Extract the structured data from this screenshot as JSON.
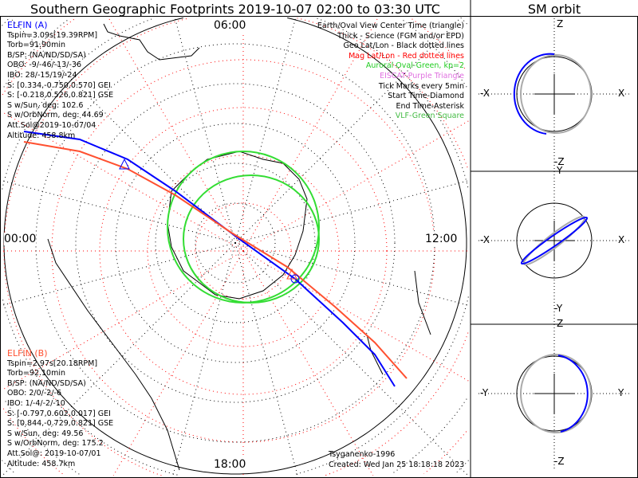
{
  "title": "Southern Geographic Footprints 2019-10-07 02:00 to 03:30 UTC",
  "sm_title": "SM orbit",
  "time_labels": {
    "top": "06:00",
    "left": "00:00",
    "right": "12:00",
    "bottom": "18:00"
  },
  "elfin_a": {
    "name": "ELFIN (A)",
    "color": "#0000ff",
    "lines": [
      "Tspin=3.09s[19.39RPM]",
      "Torb=91.90min",
      "B/SP: (NA/ND/SD/SA)",
      "OBO: -9/-46/-13/-36",
      "IBO: 28/-15/19/-24",
      "S: [0.334,-0.750,0.570] GEI",
      "S: [-0.218,0.526,0.821] GSE",
      "S w/Sun, deg: 102.6",
      "S w/OrbNorm, deg: 44.69",
      "Att.Sol@2019-10-07/04",
      "Altitude: 458.8km"
    ]
  },
  "elfin_b": {
    "name": "ELFIN (B)",
    "color": "#ff5030",
    "lines": [
      "Tspin=2.97s[20.18RPM]",
      "Torb=92.10min",
      "B/SP: (NA/ND/SD/SA)",
      "OBO: 2/0/-2/-6",
      "IBO: 1/-4/-2/-10",
      "S: [-0.797,0.602,0.017] GEI",
      "S: [0.844,-0.729,0.821] GSE",
      "S w/Sun, deg: 49.56",
      "S w/OrbNorm, deg: 175.2",
      "Att.Sol@: 2019-10-07/01",
      "Altitude: 458.7km"
    ]
  },
  "legend": [
    {
      "text": "Earth/Oval View Center Time (triangle)",
      "color": "#000000"
    },
    {
      "text": "Thick - Science (FGM and/or EPD)",
      "color": "#000000"
    },
    {
      "text": "Geo Lat/Lon - Black dotted lines",
      "color": "#000000"
    },
    {
      "text": "Mag Lat/Lon - Red dotted lines",
      "color": "#ff0000"
    },
    {
      "text": "Auroral Oval-Green, kp=2",
      "color": "#22cc22"
    },
    {
      "text": "EISCAT-Purple Triangle",
      "color": "#e070e0"
    },
    {
      "text": "Tick Marks every 5min",
      "color": "#000000"
    },
    {
      "text": "Start Time-Diamond",
      "color": "#000000"
    },
    {
      "text": "End Time-Asterisk",
      "color": "#000000"
    },
    {
      "text": "VLF-Green Square",
      "color": "#44bb44"
    }
  ],
  "credits": {
    "author": "Tsyganenko-1996",
    "created": "Created: Wed Jan 25 18:18:18 2023"
  },
  "sm_panels": [
    {
      "top": "Z",
      "bottom": "-Z",
      "left": "-X",
      "right": "X"
    },
    {
      "top": "Y",
      "bottom": "-Y",
      "left": "-X",
      "right": "X"
    },
    {
      "top": "Z",
      "bottom": "-Z",
      "left": "-Y",
      "right": "Y"
    }
  ]
}
